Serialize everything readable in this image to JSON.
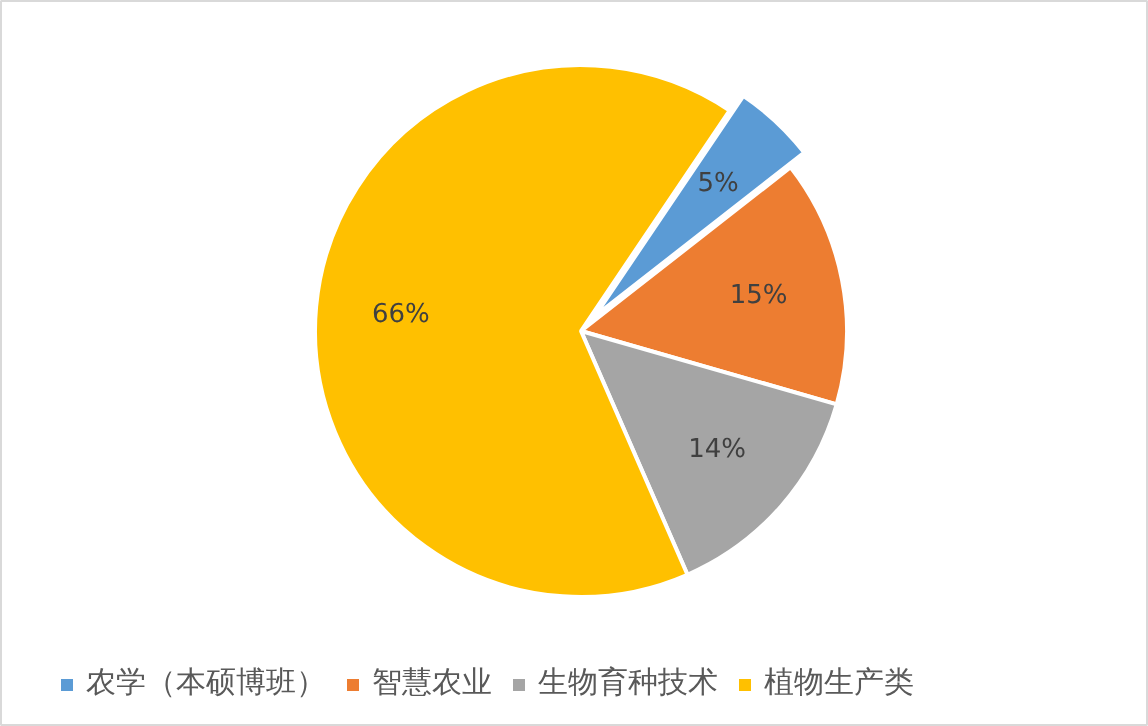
{
  "chart_data": {
    "type": "pie",
    "categories": [
      "农学（本硕博班）",
      "智慧农业",
      "生物育种技术",
      "植物生产类"
    ],
    "values": [
      5,
      15,
      14,
      66
    ],
    "colors": [
      "#5b9bd5",
      "#ed7d31",
      "#a5a5a5",
      "#ffc000"
    ],
    "value_labels": [
      "5%",
      "15%",
      "14%",
      "66%"
    ],
    "legend": "bottom"
  }
}
